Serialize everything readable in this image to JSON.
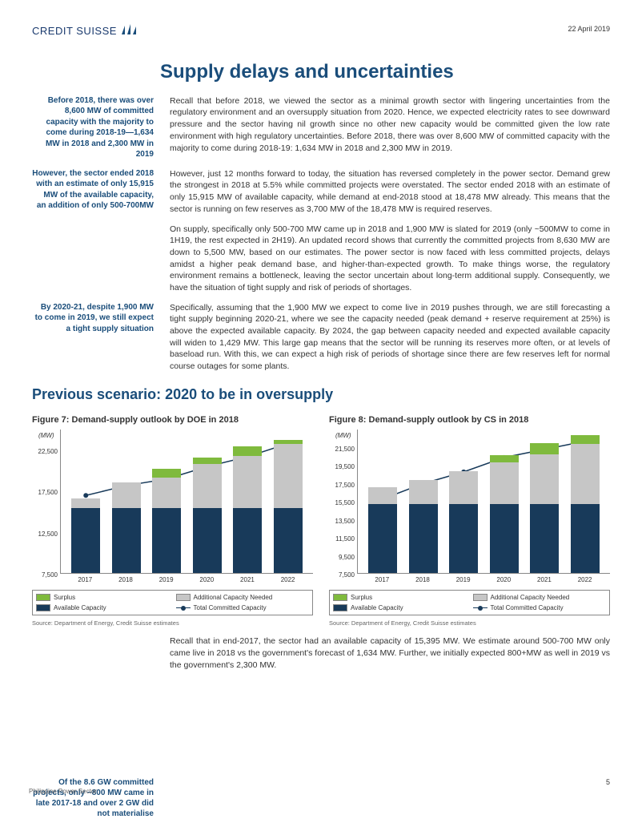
{
  "header": {
    "logo_text": "CREDIT SUISSE",
    "date": "22 April 2019"
  },
  "main_title": "Supply delays and uncertainties",
  "paragraphs": [
    {
      "sidebar": "Before 2018, there was over 8,600 MW of committed capacity with the majority to come during 2018-19—1,634 MW in 2018 and 2,300 MW in 2019",
      "body": "Recall that before 2018, we viewed the sector as a minimal growth sector with lingering uncertainties from the regulatory environment and an oversupply situation from 2020. Hence, we expected electricity rates to see downward pressure and the sector having nil growth since no other new capacity would be committed given the low rate environment with high regulatory uncertainties. Before 2018, there was over 8,600 MW of committed capacity with the majority to come during 2018-19: 1,634 MW in 2018 and 2,300 MW in 2019."
    },
    {
      "sidebar": "However, the sector ended 2018 with an estimate of only 15,915 MW of the available capacity, an addition of only 500-700MW",
      "body": "However, just 12 months forward to today, the situation has reversed completely in the power sector. Demand grew the strongest in 2018 at 5.5% while committed projects were overstated. The sector ended 2018 with an estimate of only 15,915 MW of available capacity, while demand at end-2018 stood at 18,478 MW already. This means that the sector is running on few reserves as 3,700 MW of the 18,478 MW is required reserves."
    },
    {
      "sidebar": "",
      "body": "On supply, specifically only 500-700 MW came up in 2018 and 1,900 MW is slated for 2019 (only ~500MW to come in 1H19, the rest expected in 2H19). An updated record shows that currently the committed projects from 8,630 MW are down to 5,500 MW, based on our estimates. The power sector is now faced with less committed projects, delays amidst a higher peak demand base, and higher-than-expected growth. To make things worse, the regulatory environment remains a bottleneck, leaving the sector uncertain about long-term additional supply. Consequently, we have the situation of tight supply and risk of periods of shortages."
    },
    {
      "sidebar": "By 2020-21, despite 1,900 MW to come in 2019, we still expect a tight supply situation",
      "body": "Specifically, assuming that the 1,900 MW we expect to come live in 2019 pushes through, we are still forecasting a tight supply beginning 2020-21, where we see the capacity needed (peak demand + reserve requirement at 25%) is above the expected available capacity. By 2024, the gap between capacity needed and expected available capacity will widen to 1,429 MW. This large gap means that the sector will be running its reserves more often, or at levels of baseload run. With this, we can expect a high risk of periods of shortage since there are few reserves left for normal course outages for some plants."
    }
  ],
  "section_title": "Previous scenario: 2020 to be in oversupply",
  "chart7": {
    "title": "Figure 7: Demand-supply outlook by DOE in 2018",
    "unit": "(MW)",
    "type": "stacked-bar-with-line",
    "categories": [
      "2017",
      "2018",
      "2019",
      "2020",
      "2021",
      "2022"
    ],
    "ymin": 7500,
    "ymax": 25000,
    "yticks": [
      7500,
      12500,
      17500,
      22500
    ],
    "available": [
      15400,
      15400,
      15400,
      15400,
      15400,
      15400
    ],
    "additional": [
      1200,
      3100,
      3700,
      5400,
      6300,
      7800
    ],
    "surplus": [
      0,
      0,
      1100,
      700,
      1200,
      500
    ],
    "line": [
      17000,
      18200,
      19000,
      20500,
      21700,
      23300
    ],
    "colors": {
      "available": "#183a5a",
      "additional": "#c6c6c6",
      "surplus": "#7fba3d",
      "line": "#183a5a",
      "grid": "#ffffff"
    },
    "legend": [
      "Surplus",
      "Additional Capacity Needed",
      "Available Capacity",
      "Total Committed Capacity"
    ],
    "source": "Source: Department of Energy, Credit Suisse estimates"
  },
  "chart8": {
    "title": "Figure 8: Demand-supply outlook by CS in 2018",
    "unit": "(MW)",
    "type": "stacked-bar-with-line",
    "categories": [
      "2017",
      "2018",
      "2019",
      "2020",
      "2021",
      "2022"
    ],
    "ymin": 7500,
    "ymax": 23500,
    "yticks": [
      7500,
      9500,
      11500,
      13500,
      15500,
      17500,
      19500,
      21500
    ],
    "available": [
      15200,
      15200,
      15200,
      15200,
      15200,
      15200
    ],
    "additional": [
      1800,
      2600,
      3600,
      4600,
      5500,
      6600
    ],
    "surplus": [
      0,
      0,
      0,
      800,
      1200,
      1000
    ],
    "line": [
      15800,
      17500,
      18800,
      20400,
      21300,
      22200
    ],
    "colors": {
      "available": "#183a5a",
      "additional": "#c6c6c6",
      "surplus": "#7fba3d",
      "line": "#183a5a"
    },
    "legend": [
      "Surplus",
      "Additional Capacity Needed",
      "Available Capacity",
      "Total Committed Capacity"
    ],
    "source": "Source: Department of Energy, Credit Suisse estimates"
  },
  "bottom_body": "Recall that in end-2017, the sector had an available capacity of 15,395 MW. We estimate around 500-700 MW only came live in 2018 vs the government's forecast of 1,634 MW. Further, we initially expected 800+MW as well in 2019 vs the government's 2,300 MW.",
  "footer": {
    "left": "Philippine Power Sector",
    "page": "5",
    "sidebar": "Of the 8.6 GW committed projects, only ~800 MW came in late 2017-18 and over 2 GW did not materialise"
  }
}
